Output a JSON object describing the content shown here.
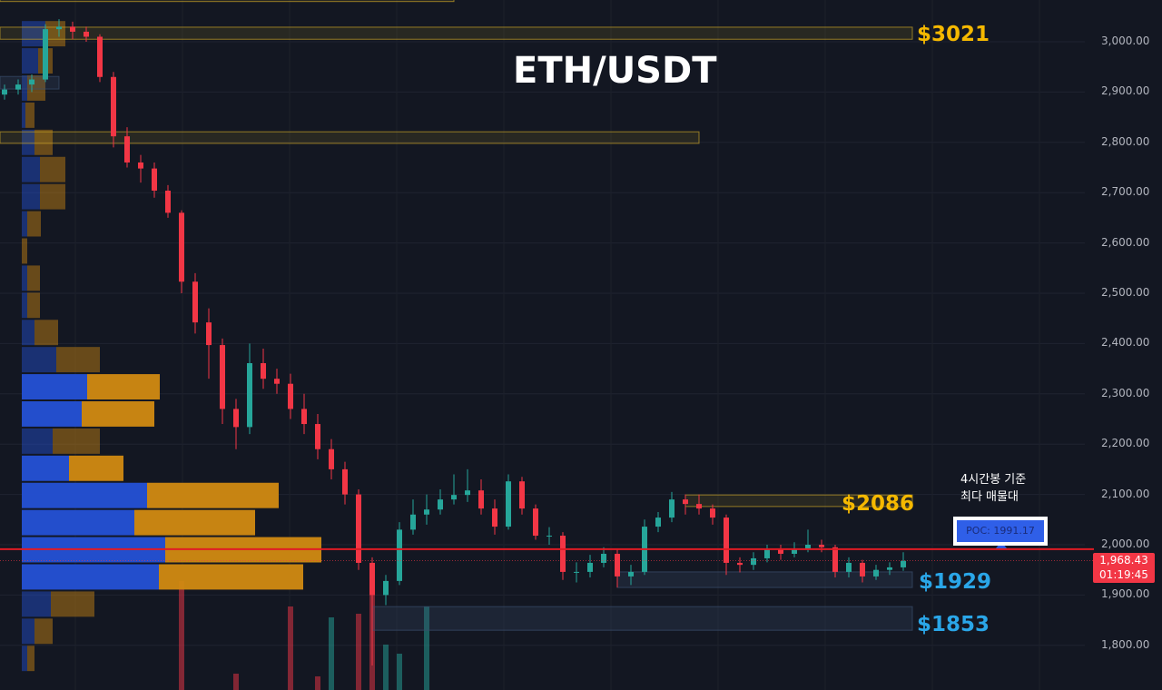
{
  "chart_data": {
    "type": "candlestick",
    "title": "ETH/USDT",
    "ylim": [
      1760,
      3085
    ],
    "y_ticks": [
      "3,000.00",
      "2,900.00",
      "2,800.00",
      "2,700.00",
      "2,600.00",
      "2,500.00",
      "2,400.00",
      "2,300.00",
      "2,200.00",
      "2,100.00",
      "2,000.00",
      "1,900.00",
      "1,800.00"
    ],
    "y_tick_values": [
      3000,
      2900,
      2800,
      2700,
      2600,
      2500,
      2400,
      2300,
      2200,
      2100,
      2000,
      1900,
      1800
    ],
    "colors": {
      "up": "#26a69a",
      "down": "#f23645",
      "background": "#131722",
      "zone": "#c9a227",
      "zone_blue": "#3a4f6e",
      "poc_line": "#e01b24",
      "profile_buy": "#2451d6",
      "profile_sell": "#d18a12",
      "label_gold": "#f5b800",
      "label_blue": "#2aa6e8"
    },
    "candles_ohlc": [
      [
        2895,
        2915,
        2885,
        2905
      ],
      [
        2905,
        2925,
        2895,
        2915
      ],
      [
        2915,
        2935,
        2900,
        2925
      ],
      [
        2925,
        3035,
        2920,
        3025
      ],
      [
        3025,
        3045,
        3010,
        3030
      ],
      [
        3030,
        3040,
        3005,
        3020
      ],
      [
        3020,
        3030,
        3000,
        3010
      ],
      [
        3010,
        3015,
        2920,
        2930
      ],
      [
        2930,
        2940,
        2790,
        2812
      ],
      [
        2812,
        2830,
        2750,
        2760
      ],
      [
        2760,
        2775,
        2720,
        2748
      ],
      [
        2748,
        2760,
        2690,
        2704
      ],
      [
        2704,
        2715,
        2650,
        2660
      ],
      [
        2660,
        2665,
        2500,
        2523
      ],
      [
        2523,
        2540,
        2420,
        2442
      ],
      [
        2442,
        2470,
        2330,
        2397
      ],
      [
        2397,
        2410,
        2240,
        2270
      ],
      [
        2270,
        2290,
        2190,
        2234
      ],
      [
        2234,
        2400,
        2220,
        2361
      ],
      [
        2361,
        2390,
        2310,
        2330
      ],
      [
        2330,
        2350,
        2300,
        2320
      ],
      [
        2320,
        2340,
        2250,
        2270
      ],
      [
        2270,
        2300,
        2220,
        2240
      ],
      [
        2240,
        2260,
        2170,
        2190
      ],
      [
        2190,
        2210,
        2130,
        2150
      ],
      [
        2150,
        2165,
        2080,
        2100
      ],
      [
        2100,
        2110,
        1950,
        1964
      ],
      [
        1964,
        1975,
        1760,
        1900
      ],
      [
        1900,
        1940,
        1880,
        1928
      ],
      [
        1928,
        2045,
        1920,
        2030
      ],
      [
        2030,
        2090,
        2020,
        2060
      ],
      [
        2060,
        2100,
        2040,
        2070
      ],
      [
        2070,
        2110,
        2060,
        2090
      ],
      [
        2090,
        2140,
        2080,
        2099
      ],
      [
        2099,
        2150,
        2085,
        2108
      ],
      [
        2108,
        2130,
        2060,
        2072
      ],
      [
        2072,
        2090,
        2020,
        2036
      ],
      [
        2036,
        2140,
        2030,
        2126
      ],
      [
        2126,
        2135,
        2060,
        2072
      ],
      [
        2072,
        2080,
        2010,
        2018
      ],
      [
        2018,
        2035,
        2000,
        2018
      ],
      [
        2018,
        2025,
        1930,
        1946
      ],
      [
        1946,
        1965,
        1925,
        1946
      ],
      [
        1946,
        1980,
        1935,
        1964
      ],
      [
        1964,
        1995,
        1955,
        1982
      ],
      [
        1982,
        1990,
        1915,
        1937
      ],
      [
        1937,
        1960,
        1920,
        1946
      ],
      [
        1946,
        2050,
        1940,
        2036
      ],
      [
        2036,
        2065,
        2025,
        2054
      ],
      [
        2054,
        2105,
        2045,
        2090
      ],
      [
        2090,
        2100,
        2060,
        2081
      ],
      [
        2081,
        2100,
        2060,
        2072
      ],
      [
        2072,
        2080,
        2040,
        2054
      ],
      [
        2054,
        2060,
        1940,
        1964
      ],
      [
        1964,
        1975,
        1945,
        1960
      ],
      [
        1960,
        1985,
        1950,
        1973
      ],
      [
        1973,
        2000,
        1965,
        1991
      ],
      [
        1991,
        2000,
        1970,
        1982
      ],
      [
        1982,
        2005,
        1975,
        1991
      ],
      [
        1991,
        2030,
        1985,
        2000
      ],
      [
        2000,
        2010,
        1985,
        1995
      ],
      [
        1995,
        2000,
        1935,
        1946
      ],
      [
        1946,
        1975,
        1935,
        1964
      ],
      [
        1964,
        1970,
        1925,
        1937
      ],
      [
        1937,
        1960,
        1930,
        1950
      ],
      [
        1950,
        1965,
        1940,
        1955
      ],
      [
        1955,
        1985,
        1948,
        1968
      ]
    ],
    "volume_bars": [
      {
        "candle": 13,
        "volume": 120,
        "dir": "down"
      },
      {
        "candle": 17,
        "volume": 18,
        "dir": "down"
      },
      {
        "candle": 21,
        "volume": 92,
        "dir": "down"
      },
      {
        "candle": 23,
        "volume": 15,
        "dir": "down"
      },
      {
        "candle": 24,
        "volume": 80,
        "dir": "up"
      },
      {
        "candle": 26,
        "volume": 84,
        "dir": "down"
      },
      {
        "candle": 27,
        "volume": 120,
        "dir": "down"
      },
      {
        "candle": 28,
        "volume": 50,
        "dir": "up"
      },
      {
        "candle": 29,
        "volume": 40,
        "dir": "up"
      },
      {
        "candle": 31,
        "volume": 92,
        "dir": "up"
      }
    ],
    "volume_profile": {
      "bin_top_price": 3043,
      "bin_size": 54,
      "buy": [
        26,
        18,
        6,
        4,
        14,
        20,
        20,
        6,
        0,
        6,
        6,
        14,
        38,
        72,
        66,
        34,
        52,
        138,
        124,
        158,
        151,
        32,
        14,
        6
      ],
      "sell": [
        22,
        16,
        20,
        10,
        20,
        28,
        28,
        15,
        6,
        14,
        14,
        26,
        48,
        80,
        80,
        52,
        60,
        145,
        133,
        172,
        159,
        48,
        20,
        8
      ]
    },
    "zones": [
      {
        "from": 3080,
        "to": 3095,
        "type": "gold",
        "end_candle": 33
      },
      {
        "from": 3005,
        "to": 3029,
        "type": "gold",
        "end_candle": 67,
        "label": "$3021"
      },
      {
        "from": 2906,
        "to": 2931,
        "type": "blue",
        "end_candle": 4
      },
      {
        "from": 2798,
        "to": 2821,
        "type": "gold",
        "end_candle": 51
      },
      {
        "from": 2076,
        "to": 2099,
        "type": "gold",
        "start_candle": 50,
        "end_candle": 67,
        "label": "$2086"
      },
      {
        "from": 1915,
        "to": 1946,
        "type": "blue",
        "start_candle": 45,
        "end_candle": 67,
        "label": "$1929"
      },
      {
        "from": 1830,
        "to": 1877,
        "type": "blue",
        "start_candle": 27,
        "end_candle": 67,
        "label": "$1853"
      }
    ],
    "poc_price": 1991.17,
    "last_price": 1968.43
  },
  "labels": {
    "title": "ETH/USDT",
    "zone_3021": "$3021",
    "zone_2086": "$2086",
    "zone_1929": "$1929",
    "zone_1853": "$1853",
    "note_line1": "4시간봉 기준",
    "note_line2": "최다 매물대",
    "poc": "POC: 1991.17",
    "last_price": "1,968.43",
    "countdown": "01:19:45"
  }
}
